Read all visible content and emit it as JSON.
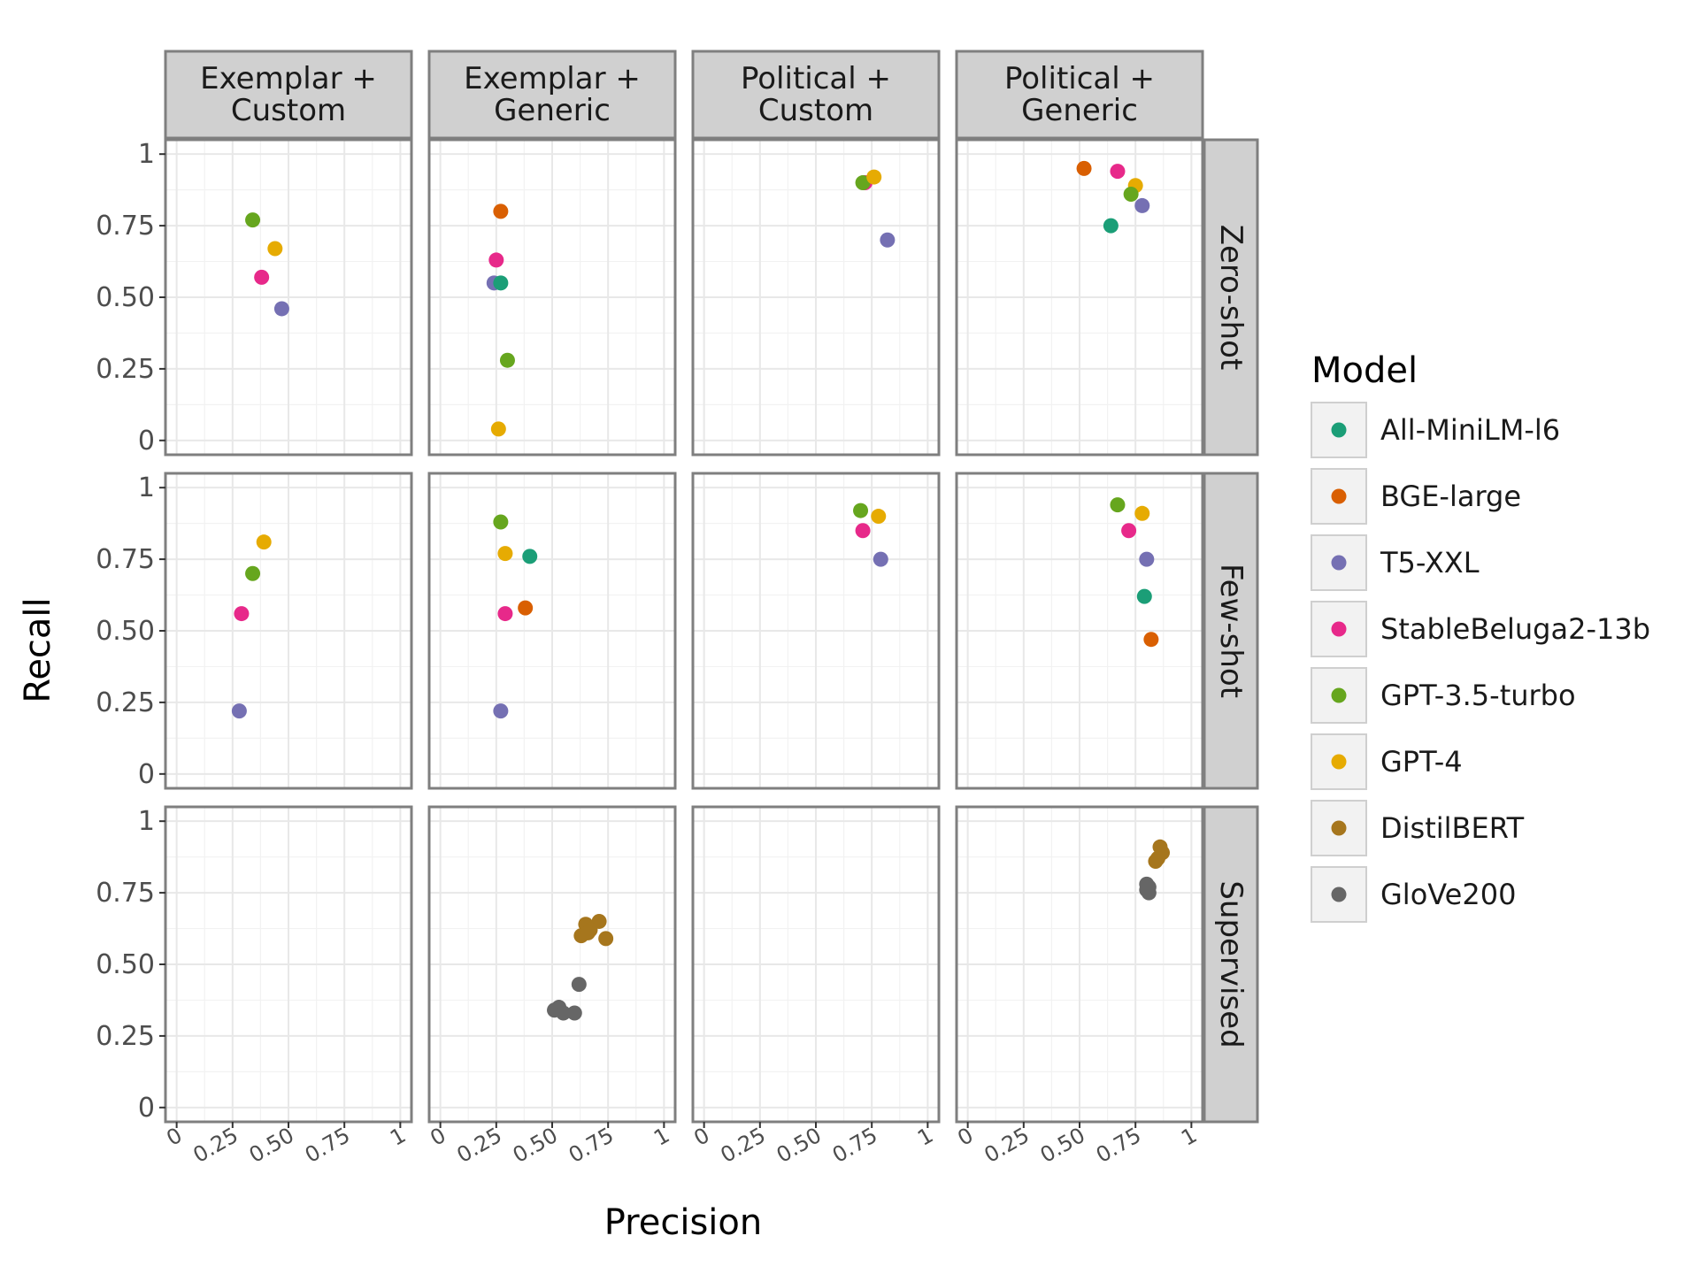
{
  "chart_data": {
    "type": "scatter",
    "xlabel": "Precision",
    "ylabel": "Recall",
    "xlim": [
      -0.05,
      1.05
    ],
    "ylim": [
      -0.05,
      1.05
    ],
    "x_ticks": [
      0,
      0.25,
      0.5,
      0.75,
      1
    ],
    "x_tick_labels": [
      "0",
      "0.25",
      "0.50",
      "0.75",
      "1"
    ],
    "y_ticks": [
      0,
      0.25,
      0.5,
      0.75,
      1
    ],
    "y_tick_labels": [
      "0",
      "0.25",
      "0.50",
      "0.75",
      "1"
    ],
    "grid": true,
    "legend_position": "right",
    "facet_columns": [
      {
        "line1": "Exemplar +",
        "line2": "Custom"
      },
      {
        "line1": "Exemplar +",
        "line2": "Generic"
      },
      {
        "line1": "Political +",
        "line2": "Custom"
      },
      {
        "line1": "Political +",
        "line2": "Generic"
      }
    ],
    "facet_rows": [
      "Zero-shot",
      "Few-shot",
      "Supervised"
    ],
    "legend": {
      "title": "Model",
      "entries": [
        {
          "name": "All-MiniLM-l6",
          "color": "#1b9e77"
        },
        {
          "name": "BGE-large",
          "color": "#d95f02"
        },
        {
          "name": "T5-XXL",
          "color": "#7570b3"
        },
        {
          "name": "StableBeluga2-13b",
          "color": "#e7298a"
        },
        {
          "name": "GPT-3.5-turbo",
          "color": "#66a61e"
        },
        {
          "name": "GPT-4",
          "color": "#e6ab02"
        },
        {
          "name": "DistilBERT",
          "color": "#a6761d"
        },
        {
          "name": "GloVe200",
          "color": "#666666"
        }
      ]
    },
    "points": [
      {
        "row": 0,
        "col": 0,
        "model": 4,
        "x": 0.34,
        "y": 0.77
      },
      {
        "row": 0,
        "col": 0,
        "model": 5,
        "x": 0.44,
        "y": 0.67
      },
      {
        "row": 0,
        "col": 0,
        "model": 3,
        "x": 0.38,
        "y": 0.57
      },
      {
        "row": 0,
        "col": 0,
        "model": 2,
        "x": 0.47,
        "y": 0.46
      },
      {
        "row": 0,
        "col": 1,
        "model": 1,
        "x": 0.27,
        "y": 0.8
      },
      {
        "row": 0,
        "col": 1,
        "model": 3,
        "x": 0.25,
        "y": 0.63
      },
      {
        "row": 0,
        "col": 1,
        "model": 2,
        "x": 0.24,
        "y": 0.55
      },
      {
        "row": 0,
        "col": 1,
        "model": 0,
        "x": 0.27,
        "y": 0.55
      },
      {
        "row": 0,
        "col": 1,
        "model": 4,
        "x": 0.3,
        "y": 0.28
      },
      {
        "row": 0,
        "col": 1,
        "model": 5,
        "x": 0.26,
        "y": 0.04
      },
      {
        "row": 0,
        "col": 2,
        "model": 3,
        "x": 0.72,
        "y": 0.9
      },
      {
        "row": 0,
        "col": 2,
        "model": 4,
        "x": 0.71,
        "y": 0.9
      },
      {
        "row": 0,
        "col": 2,
        "model": 5,
        "x": 0.76,
        "y": 0.92
      },
      {
        "row": 0,
        "col": 2,
        "model": 2,
        "x": 0.82,
        "y": 0.7
      },
      {
        "row": 0,
        "col": 3,
        "model": 1,
        "x": 0.52,
        "y": 0.95
      },
      {
        "row": 0,
        "col": 3,
        "model": 3,
        "x": 0.67,
        "y": 0.94
      },
      {
        "row": 0,
        "col": 3,
        "model": 5,
        "x": 0.75,
        "y": 0.89
      },
      {
        "row": 0,
        "col": 3,
        "model": 4,
        "x": 0.73,
        "y": 0.86
      },
      {
        "row": 0,
        "col": 3,
        "model": 2,
        "x": 0.78,
        "y": 0.82
      },
      {
        "row": 0,
        "col": 3,
        "model": 0,
        "x": 0.64,
        "y": 0.75
      },
      {
        "row": 1,
        "col": 0,
        "model": 5,
        "x": 0.39,
        "y": 0.81
      },
      {
        "row": 1,
        "col": 0,
        "model": 4,
        "x": 0.34,
        "y": 0.7
      },
      {
        "row": 1,
        "col": 0,
        "model": 3,
        "x": 0.29,
        "y": 0.56
      },
      {
        "row": 1,
        "col": 0,
        "model": 2,
        "x": 0.28,
        "y": 0.22
      },
      {
        "row": 1,
        "col": 1,
        "model": 4,
        "x": 0.27,
        "y": 0.88
      },
      {
        "row": 1,
        "col": 1,
        "model": 5,
        "x": 0.29,
        "y": 0.77
      },
      {
        "row": 1,
        "col": 1,
        "model": 0,
        "x": 0.4,
        "y": 0.76
      },
      {
        "row": 1,
        "col": 1,
        "model": 1,
        "x": 0.38,
        "y": 0.58
      },
      {
        "row": 1,
        "col": 1,
        "model": 3,
        "x": 0.29,
        "y": 0.56
      },
      {
        "row": 1,
        "col": 1,
        "model": 2,
        "x": 0.27,
        "y": 0.22
      },
      {
        "row": 1,
        "col": 2,
        "model": 4,
        "x": 0.7,
        "y": 0.92
      },
      {
        "row": 1,
        "col": 2,
        "model": 5,
        "x": 0.78,
        "y": 0.9
      },
      {
        "row": 1,
        "col": 2,
        "model": 3,
        "x": 0.71,
        "y": 0.85
      },
      {
        "row": 1,
        "col": 2,
        "model": 2,
        "x": 0.79,
        "y": 0.75
      },
      {
        "row": 1,
        "col": 3,
        "model": 4,
        "x": 0.67,
        "y": 0.94
      },
      {
        "row": 1,
        "col": 3,
        "model": 5,
        "x": 0.78,
        "y": 0.91
      },
      {
        "row": 1,
        "col": 3,
        "model": 3,
        "x": 0.72,
        "y": 0.85
      },
      {
        "row": 1,
        "col": 3,
        "model": 2,
        "x": 0.8,
        "y": 0.75
      },
      {
        "row": 1,
        "col": 3,
        "model": 0,
        "x": 0.79,
        "y": 0.62
      },
      {
        "row": 1,
        "col": 3,
        "model": 1,
        "x": 0.82,
        "y": 0.47
      },
      {
        "row": 2,
        "col": 1,
        "model": 6,
        "x": 0.71,
        "y": 0.65
      },
      {
        "row": 2,
        "col": 1,
        "model": 6,
        "x": 0.65,
        "y": 0.64
      },
      {
        "row": 2,
        "col": 1,
        "model": 6,
        "x": 0.67,
        "y": 0.62
      },
      {
        "row": 2,
        "col": 1,
        "model": 6,
        "x": 0.63,
        "y": 0.6
      },
      {
        "row": 2,
        "col": 1,
        "model": 6,
        "x": 0.66,
        "y": 0.61
      },
      {
        "row": 2,
        "col": 1,
        "model": 6,
        "x": 0.74,
        "y": 0.59
      },
      {
        "row": 2,
        "col": 1,
        "model": 7,
        "x": 0.62,
        "y": 0.43
      },
      {
        "row": 2,
        "col": 1,
        "model": 7,
        "x": 0.51,
        "y": 0.34
      },
      {
        "row": 2,
        "col": 1,
        "model": 7,
        "x": 0.53,
        "y": 0.35
      },
      {
        "row": 2,
        "col": 1,
        "model": 7,
        "x": 0.55,
        "y": 0.33
      },
      {
        "row": 2,
        "col": 1,
        "model": 7,
        "x": 0.6,
        "y": 0.33
      },
      {
        "row": 2,
        "col": 3,
        "model": 6,
        "x": 0.86,
        "y": 0.91
      },
      {
        "row": 2,
        "col": 3,
        "model": 6,
        "x": 0.87,
        "y": 0.89
      },
      {
        "row": 2,
        "col": 3,
        "model": 6,
        "x": 0.85,
        "y": 0.87
      },
      {
        "row": 2,
        "col": 3,
        "model": 6,
        "x": 0.84,
        "y": 0.86
      },
      {
        "row": 2,
        "col": 3,
        "model": 7,
        "x": 0.8,
        "y": 0.78
      },
      {
        "row": 2,
        "col": 3,
        "model": 7,
        "x": 0.81,
        "y": 0.77
      },
      {
        "row": 2,
        "col": 3,
        "model": 7,
        "x": 0.8,
        "y": 0.76
      },
      {
        "row": 2,
        "col": 3,
        "model": 7,
        "x": 0.81,
        "y": 0.75
      }
    ]
  }
}
